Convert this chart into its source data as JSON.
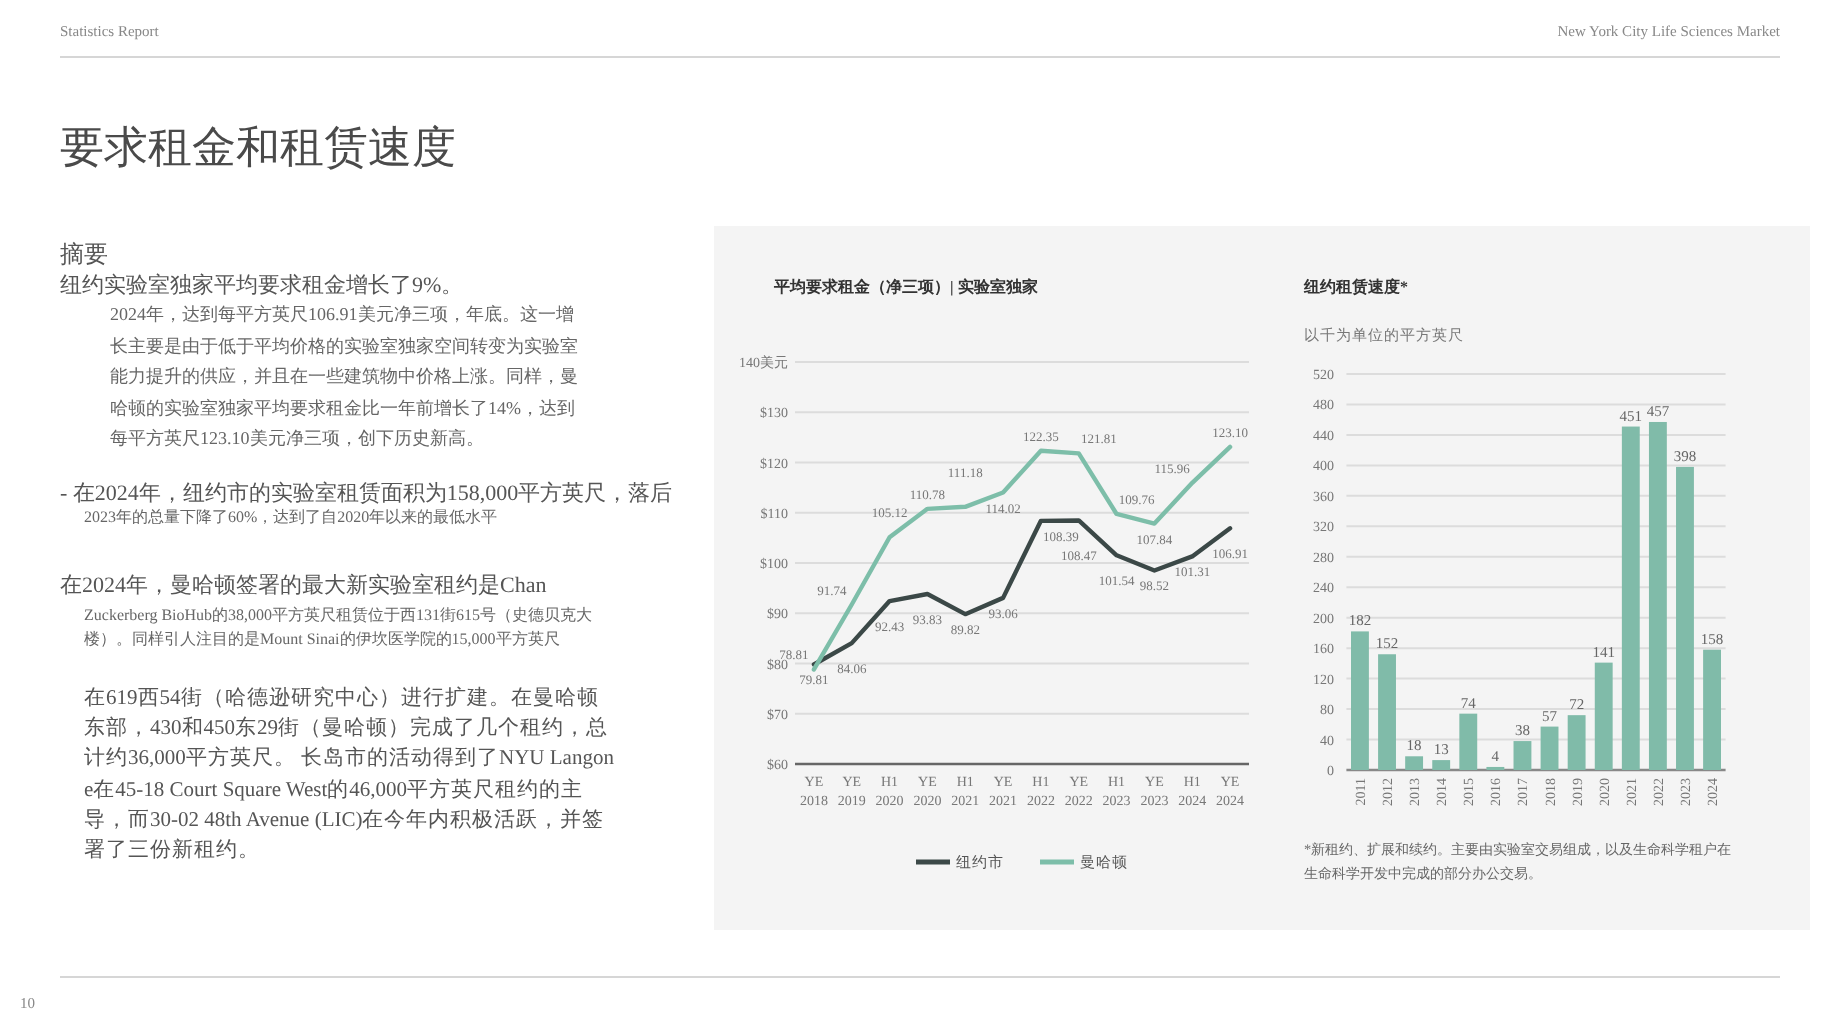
{
  "chart_data": [
    {
      "type": "other",
      "title": "要求租金和租赁速度",
      "annotations": [
        "Statistics Report",
        "New York City Life Sciences Market",
        "摘要",
        "纽约实验室独家平均要求租金增长了9%。",
        "2024年，达到每平方英尺106.91美元净三项，年底。这一增长主要是由于低于平均价格的实验室独家空间转变为实验室能力提升的供应，并且在一些建筑物中价格上涨。同样，曼哈顿的实验室独家平均要求租金比一年前增长了14%，达到每平方英尺123.10美元净三项，创下历史新高。",
        "- 在2024年，纽约市的实验室租赁面积为158,000平方英尺，落后",
        "2023年的总量下降了60%，达到了自2020年以来的最低水平",
        "在2024年，曼哈顿签署的最大新实验室租约是Chan",
        "Zuckerberg BioHub的38,000平方英尺租赁位于西131街615号（史德贝克大楼）。同样引人注目的是Mount Sinai的伊坎医学院的15,000平方英尺",
        "在619西54街（哈德逊研究中心）进行扩建。在曼哈顿东部，430和450东29街（曼哈顿）完成了几个租约，总计约36,000平方英尺。 长岛市的活动得到了NYU Langone在45-18 Court Square West的46,000平方英尺租约的主导，而30-02 48th Avenue (LIC)在今年内积极活跃，并签署了三份新租约。",
        "10"
      ]
    },
    {
      "type": "line",
      "title": "平均要求租金（净三项）| 实验室独家",
      "categories": [
        "YE 2018",
        "YE 2019",
        "H1 2020",
        "YE 2020",
        "H1 2021",
        "YE 2021",
        "H1 2022",
        "YE 2022",
        "H1 2023",
        "YE 2023",
        "H1 2024",
        "YE 2024"
      ],
      "series": [
        {
          "name": "纽约市",
          "color": "#3b4847",
          "values": [
            79.81,
            84.06,
            92.43,
            93.83,
            89.82,
            93.06,
            108.39,
            108.47,
            101.54,
            98.52,
            101.31,
            106.91
          ],
          "value_labels": [
            "79.81",
            "84.06",
            "92.43",
            "93.83",
            "89.82",
            "93.06",
            "108.39",
            "108.47",
            "101.54",
            "98.52",
            "101.31",
            "106.91"
          ]
        },
        {
          "name": "曼哈顿",
          "color": "#7dbea9",
          "values": [
            78.81,
            91.74,
            105.12,
            110.78,
            111.18,
            114.02,
            122.35,
            121.81,
            109.76,
            107.84,
            115.96,
            123.1
          ],
          "value_labels": [
            "78.81",
            "91.74",
            "105.12",
            "110.78",
            "111.18",
            "114.02",
            "122.35",
            "121.81",
            "109.76",
            "107.84",
            "115.96",
            "123.10"
          ]
        }
      ],
      "ylim": [
        60,
        140
      ],
      "yticks": [
        {
          "value": 60,
          "label": "$60"
        },
        {
          "value": 70,
          "label": "$70"
        },
        {
          "value": 80,
          "label": "$80"
        },
        {
          "value": 90,
          "label": "$90"
        },
        {
          "value": 100,
          "label": "$100"
        },
        {
          "value": 110,
          "label": "$110"
        },
        {
          "value": 120,
          "label": "$120"
        },
        {
          "value": 130,
          "label": "$130"
        },
        {
          "value": 140,
          "label": "140美元"
        }
      ],
      "grid": "y",
      "legend": "bottom"
    },
    {
      "type": "bar",
      "title": "纽约租赁速度*",
      "subtitle": "以千为单位的平方英尺",
      "categories": [
        "2011",
        "2012",
        "2013",
        "2014",
        "2015",
        "2016",
        "2017",
        "2018",
        "2019",
        "2020",
        "2021",
        "2022",
        "2023",
        "2024"
      ],
      "values": [
        182,
        152,
        18,
        13,
        74,
        4,
        38,
        57,
        72,
        141,
        451,
        457,
        398,
        158
      ],
      "color": "#80bba9",
      "ylim": [
        0,
        520
      ],
      "yticks": [
        0,
        40,
        80,
        120,
        160,
        200,
        240,
        280,
        320,
        360,
        400,
        440,
        480,
        520
      ],
      "grid": "y",
      "data_labels": true,
      "annotations": [
        "*新租约、扩展和续约。主要由实验室交易组成，以及生命科学租户在生命科学开发中完成的部分办公交易。"
      ]
    }
  ]
}
